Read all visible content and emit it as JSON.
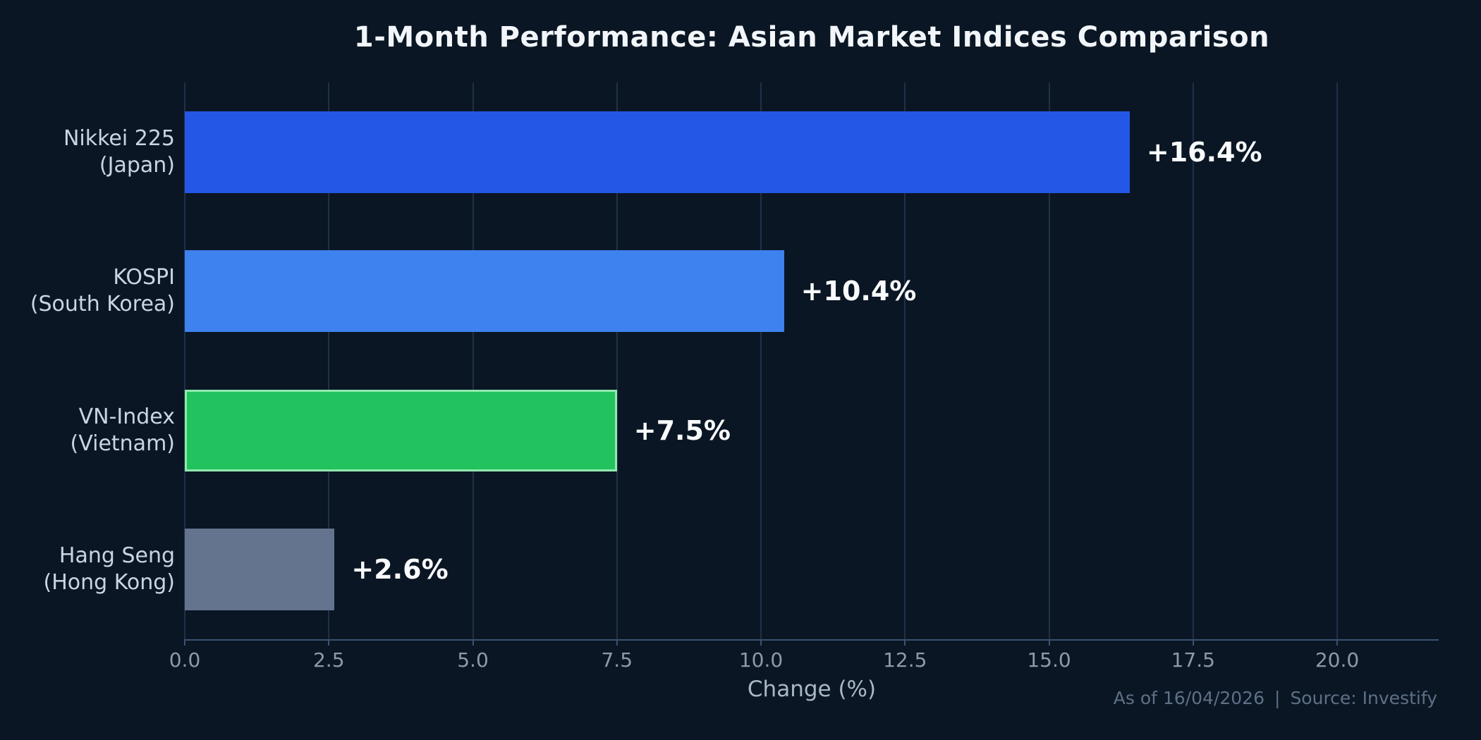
{
  "chart_data": {
    "type": "bar",
    "orientation": "horizontal",
    "title": "1-Month Performance: Asian Market Indices Comparison",
    "xlabel": "Change (%)",
    "xlim": [
      0,
      21.76
    ],
    "xticks": [
      {
        "value": 0,
        "label": "0.0"
      },
      {
        "value": 2.5,
        "label": "2.5"
      },
      {
        "value": 5,
        "label": "5.0"
      },
      {
        "value": 7.5,
        "label": "7.5"
      },
      {
        "value": 10,
        "label": "10.0"
      },
      {
        "value": 12.5,
        "label": "12.5"
      },
      {
        "value": 15,
        "label": "15.0"
      },
      {
        "value": 17.5,
        "label": "17.5"
      },
      {
        "value": 20,
        "label": "20.0"
      }
    ],
    "grid": "vertical gridlines at each x tick, drawn behind bars",
    "legend": "none",
    "bars": [
      {
        "category": "Nikkei 225 (Japan)",
        "label_lines": [
          "Nikkei 225",
          "(Japan)"
        ],
        "value": 16.4,
        "value_label": "+16.4%",
        "color": "#2457e6"
      },
      {
        "category": "KOSPI (South Korea)",
        "label_lines": [
          "KOSPI",
          "(South Korea)"
        ],
        "value": 10.4,
        "value_label": "+10.4%",
        "color": "#3d82ee"
      },
      {
        "category": "VN-Index (Vietnam)",
        "label_lines": [
          "VN-Index",
          "(Vietnam)"
        ],
        "value": 7.5,
        "value_label": "+7.5%",
        "color": "#22c35e",
        "border_color": "#90e9ae"
      },
      {
        "category": "Hang Seng (Hong Kong)",
        "label_lines": [
          "Hang Seng",
          "(Hong Kong)"
        ],
        "value": 2.6,
        "value_label": "+2.6%",
        "color": "#64748e"
      }
    ],
    "colors": {
      "background": "#0b1624",
      "title": "#f2f6fa",
      "category_label": "#c9d5e2",
      "value_label": "#f8fafc",
      "tick_label": "#8d9aab",
      "xlabel": "#a9b7c7",
      "gridline": "#1e3049",
      "axis_line": "#3b5273",
      "footer": "#5d7086"
    }
  },
  "footer": {
    "as_of": "As of 16/04/2026",
    "separator": "|",
    "source": "Source: Investify"
  }
}
